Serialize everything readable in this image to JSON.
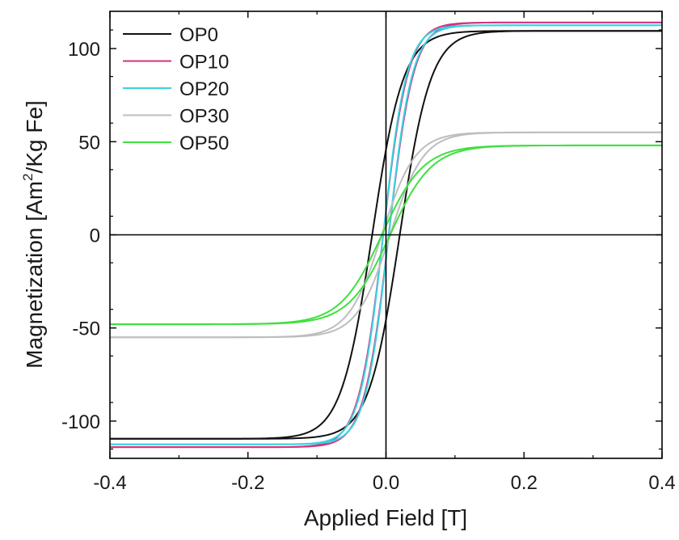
{
  "chart_data": {
    "type": "line",
    "xlabel": "Applied Field [T]",
    "ylabel_main": "Magnetization [Am",
    "ylabel_sup": "2",
    "ylabel_tail": "/Kg Fe]",
    "xlim": [
      -0.4,
      0.4
    ],
    "ylim": [
      -120,
      120
    ],
    "xticks": [
      -0.4,
      -0.2,
      0.0,
      0.2,
      0.4
    ],
    "xtick_labels": [
      "-0.4",
      "-0.2",
      "0.0",
      "0.2",
      "0.4"
    ],
    "yticks": [
      -100,
      -50,
      0,
      50,
      100
    ],
    "ytick_labels": [
      "-100",
      "-50",
      "0",
      "50",
      "100"
    ],
    "grid": false,
    "zero_lines": true,
    "legend_position": "top-left",
    "series": [
      {
        "name": "OP0",
        "color": "#111111",
        "Ms": 109.5,
        "Hc": 0.02,
        "k": 0.045,
        "x": [
          -0.4,
          -0.3,
          -0.2,
          -0.15,
          -0.1,
          -0.06,
          -0.04,
          -0.02,
          0.0,
          0.02,
          0.04,
          0.06,
          0.1,
          0.15,
          0.2,
          0.3,
          0.4
        ],
        "y_up": [
          -110,
          -108,
          -104,
          -99,
          -89,
          -74,
          -61,
          -41,
          -16,
          12,
          38,
          58,
          83,
          97,
          103,
          107,
          109
        ],
        "y_down": [
          -109,
          -107,
          -103,
          -97,
          -83,
          -58,
          -38,
          -12,
          16,
          41,
          61,
          74,
          89,
          99,
          104,
          108,
          110
        ]
      },
      {
        "name": "OP10",
        "color": "#d4337f",
        "Ms": 114,
        "Hc": 0.004,
        "k": 0.036,
        "x": [
          -0.4,
          -0.3,
          -0.2,
          -0.15,
          -0.1,
          -0.06,
          -0.04,
          -0.02,
          0.0,
          0.02,
          0.04,
          0.06,
          0.1,
          0.15,
          0.2,
          0.3,
          0.4
        ],
        "y_up": [
          -113,
          -111,
          -107,
          -102,
          -92,
          -76,
          -62,
          -37,
          -5,
          27,
          56,
          75,
          93,
          103,
          107,
          111,
          113
        ],
        "y_down": [
          -113,
          -111,
          -107,
          -103,
          -93,
          -75,
          -56,
          -27,
          5,
          37,
          62,
          76,
          92,
          102,
          107,
          111,
          113
        ]
      },
      {
        "name": "OP20",
        "color": "#36d3e0",
        "Ms": 112.5,
        "Hc": 0.004,
        "k": 0.034,
        "x": [
          -0.4,
          -0.3,
          -0.2,
          -0.15,
          -0.1,
          -0.06,
          -0.04,
          -0.02,
          0.0,
          0.02,
          0.04,
          0.06,
          0.1,
          0.15,
          0.2,
          0.3,
          0.4
        ],
        "y_up": [
          -112,
          -110,
          -106,
          -101,
          -92,
          -77,
          -63,
          -38,
          -6,
          27,
          56,
          75,
          92,
          102,
          106,
          110,
          112
        ],
        "y_down": [
          -112,
          -110,
          -106,
          -102,
          -92,
          -75,
          -56,
          -27,
          6,
          38,
          63,
          77,
          92,
          101,
          106,
          110,
          112
        ]
      },
      {
        "name": "OP30",
        "color": "#bdbdbd",
        "Ms": 55,
        "Hc": 0.006,
        "k": 0.048,
        "x": [
          -0.4,
          -0.3,
          -0.2,
          -0.15,
          -0.1,
          -0.06,
          -0.04,
          -0.02,
          0.0,
          0.02,
          0.04,
          0.06,
          0.1,
          0.15,
          0.2,
          0.3,
          0.4
        ],
        "y_up": [
          -50,
          -48,
          -45,
          -42,
          -37,
          -29,
          -22,
          -12,
          -2,
          8,
          17,
          26,
          35,
          41,
          44,
          48,
          50
        ],
        "y_down": [
          -50,
          -48,
          -44,
          -41,
          -35,
          -26,
          -17,
          -8,
          2,
          12,
          22,
          29,
          37,
          42,
          45,
          48,
          50
        ]
      },
      {
        "name": "OP50",
        "color": "#3fe03f",
        "Ms": 48,
        "Hc": 0.006,
        "k": 0.06,
        "x": [
          -0.4,
          -0.3,
          -0.2,
          -0.15,
          -0.1,
          -0.06,
          -0.04,
          -0.02,
          0.0,
          0.02,
          0.04,
          0.06,
          0.1,
          0.15,
          0.2,
          0.3,
          0.4
        ],
        "y_up": [
          -42,
          -40,
          -36,
          -33,
          -28,
          -21,
          -16,
          -9,
          -2,
          6,
          13,
          19,
          27,
          32,
          36,
          40,
          42
        ],
        "y_down": [
          -42,
          -40,
          -36,
          -32,
          -27,
          -19,
          -13,
          -6,
          2,
          9,
          16,
          21,
          28,
          33,
          36,
          40,
          42
        ]
      }
    ]
  }
}
